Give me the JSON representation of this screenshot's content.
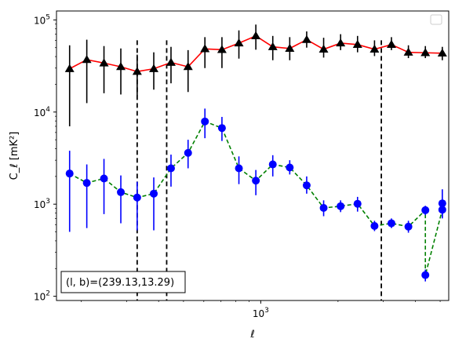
{
  "chart_data": {
    "type": "line",
    "xscale": "log",
    "yscale": "log",
    "xlim": [
      160,
      5400
    ],
    "ylim": [
      90,
      125000
    ],
    "xlabel": "ℓ",
    "ylabel": "C_ℓ  [mK²]",
    "x_ticks": [
      {
        "value": 1000,
        "base": "10",
        "exp": "3"
      }
    ],
    "y_ticks": [
      {
        "value": 100,
        "base": "10",
        "exp": "2"
      },
      {
        "value": 1000,
        "base": "10",
        "exp": "3"
      },
      {
        "value": 10000,
        "base": "10",
        "exp": "4"
      },
      {
        "value": 100000,
        "base": "10",
        "exp": "5"
      }
    ],
    "annotation": "(l, b)=(239.13,13.29)",
    "legend": "top-right (empty)",
    "vlines": [
      330,
      430,
      2950
    ],
    "series": [
      {
        "line_color": "#ff0000",
        "line_style": "solid",
        "marker": "triangle",
        "marker_color": "#000000",
        "errorbar_color": "#000000",
        "x": [
          180,
          210,
          245,
          285,
          330,
          383,
          447,
          521,
          606,
          706,
          822,
          957,
          1114,
          1297,
          1510,
          1758,
          2047,
          2383,
          2775,
          3230,
          3761,
          4379,
          5098
        ],
        "y": [
          29500,
          37000,
          34000,
          31000,
          27500,
          29500,
          34500,
          31000,
          48500,
          47500,
          56000,
          67000,
          51000,
          49000,
          61000,
          48000,
          56000,
          54000,
          48000,
          54000,
          44500,
          44000,
          43500
        ],
        "yerr_low": [
          7000,
          12500,
          16000,
          15500,
          15000,
          17500,
          20500,
          16500,
          30000,
          30000,
          38000,
          47500,
          36500,
          36500,
          50000,
          39000,
          47000,
          44500,
          40500,
          47000,
          38500,
          38500,
          36500
        ],
        "yerr_high": [
          53000,
          61000,
          52000,
          49000,
          42000,
          44500,
          51000,
          47000,
          65000,
          65000,
          77000,
          89000,
          67000,
          65000,
          75000,
          64000,
          70000,
          67000,
          60000,
          65000,
          53000,
          52000,
          51000
        ]
      },
      {
        "line_color": "#008000",
        "line_style": "dashed",
        "marker": "circle",
        "marker_color": "#0000ff",
        "errorbar_color": "#0000ff",
        "x": [
          180,
          210,
          245,
          285,
          330,
          383,
          447,
          521,
          606,
          706,
          822,
          957,
          1114,
          1297,
          1510,
          1758,
          2047,
          2383,
          2775,
          3230,
          3761,
          4379,
          5098
        ],
        "y": [
          2150,
          1700,
          1900,
          1350,
          1180,
          1300,
          2450,
          3600,
          7900,
          6700,
          2450,
          1800,
          2700,
          2500,
          1600,
          910,
          950,
          1010,
          580,
          620,
          570,
          860,
          870
        ],
        "yerr_low": [
          500,
          550,
          780,
          620,
          520,
          520,
          1550,
          2450,
          5200,
          4850,
          1650,
          1250,
          2000,
          2100,
          1300,
          740,
          820,
          830,
          510,
          550,
          490,
          760,
          720
        ],
        "yerr_high": [
          3800,
          2700,
          3100,
          2050,
          1750,
          1950,
          3450,
          5000,
          10900,
          8850,
          3300,
          2350,
          3400,
          3000,
          2000,
          1100,
          1100,
          1200,
          660,
          700,
          660,
          960,
          1020
        ]
      }
    ],
    "blue_extra": {
      "x": [
        4379,
        5098
      ],
      "y": [
        170,
        1020
      ],
      "yerr_low": [
        145,
        700
      ],
      "yerr_high": [
        195,
        1450
      ]
    }
  }
}
